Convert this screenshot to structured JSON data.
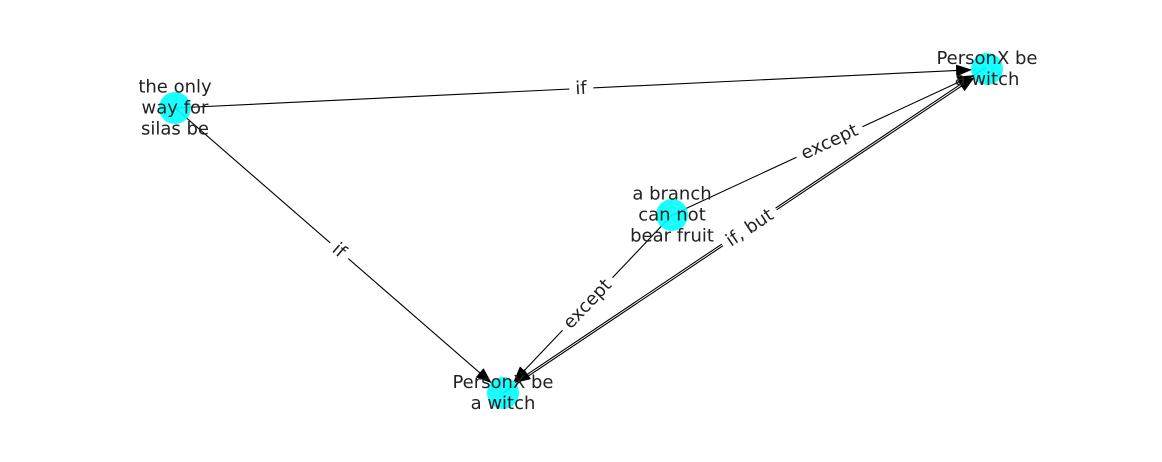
{
  "graph": {
    "node_color": "#00ffff",
    "edge_color": "#000000",
    "nodes": [
      {
        "id": "n1",
        "lines": [
          "the only",
          "way for",
          "silas be"
        ]
      },
      {
        "id": "n2",
        "lines": [
          "PersonX be",
          "a witch"
        ]
      },
      {
        "id": "n3",
        "lines": [
          "a branch",
          "can not",
          "bear fruit"
        ]
      },
      {
        "id": "n4",
        "lines": [
          "PersonX be",
          "a witch"
        ]
      }
    ],
    "edges": [
      {
        "from": "n1",
        "to": "n2",
        "label": "if"
      },
      {
        "from": "n1",
        "to": "n4",
        "label": "if"
      },
      {
        "from": "n3",
        "to": "n2",
        "label": "except"
      },
      {
        "from": "n3",
        "to": "n4",
        "label": "except"
      },
      {
        "from": "n4",
        "to": "n2",
        "label": "if,  but"
      },
      {
        "from": "n2",
        "to": "n4",
        "label": ""
      }
    ]
  }
}
